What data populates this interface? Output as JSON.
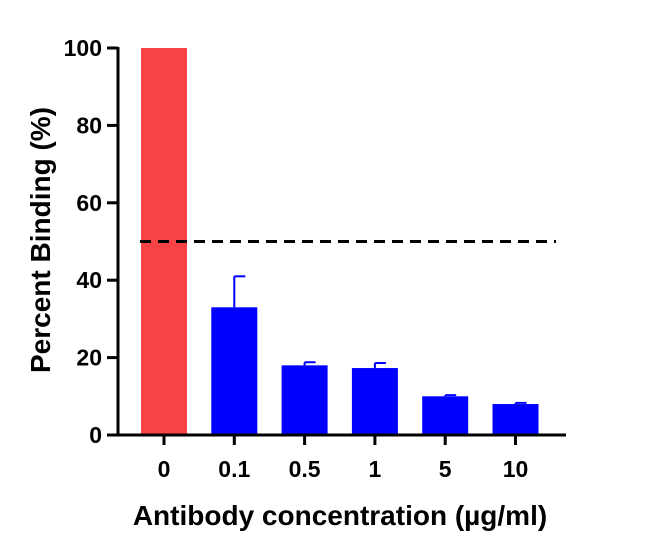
{
  "chart_data": {
    "type": "bar",
    "title": "",
    "xlabel": "Antibody concentration (µg/ml)",
    "ylabel": "Percent Binding (%)",
    "ylim": [
      0,
      100
    ],
    "yticks": [
      0,
      20,
      40,
      60,
      80,
      100
    ],
    "categories": [
      "0",
      "0.1",
      "0.5",
      "1",
      "5",
      "10"
    ],
    "values": [
      100,
      33,
      18,
      17.3,
      10,
      8
    ],
    "errors": [
      0,
      8,
      0.8,
      1.3,
      0.3,
      0.3
    ],
    "bar_colors": [
      "#f74346",
      "#0000ff",
      "#0000ff",
      "#0000ff",
      "#0000ff",
      "#0000ff"
    ],
    "reference_line": {
      "y": 50,
      "style": "dashed",
      "color": "#000000"
    },
    "grid": false,
    "legend": "none"
  }
}
